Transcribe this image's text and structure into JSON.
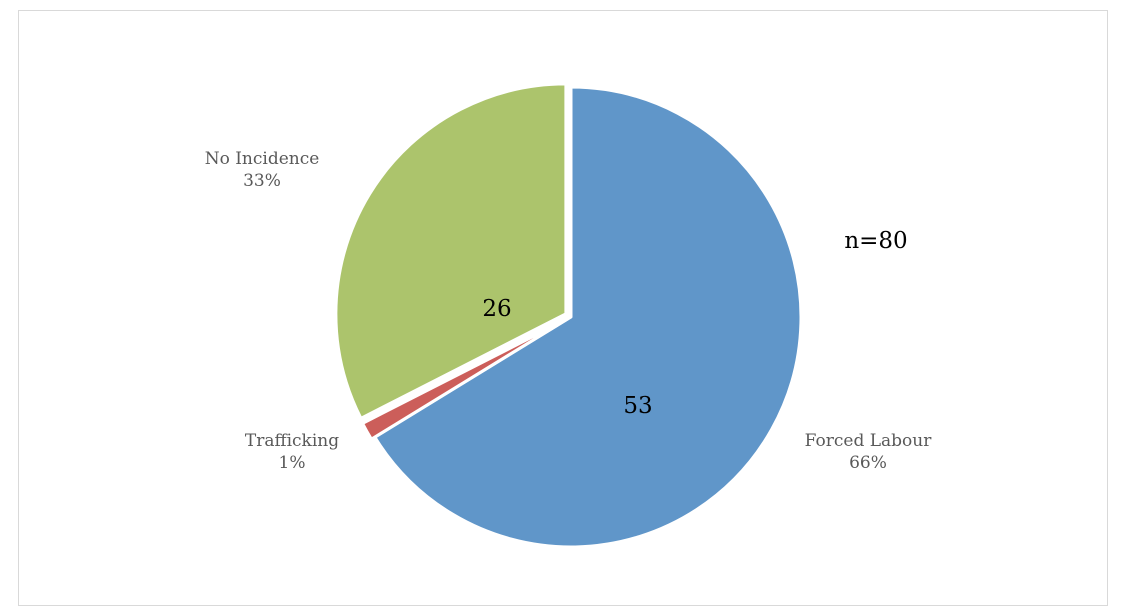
{
  "chart_data": {
    "type": "pie",
    "title": "",
    "annotation": "n=80",
    "slices": [
      {
        "name": "Forced Labour",
        "count": 53,
        "percent_label": "66%",
        "color": "#6096C9"
      },
      {
        "name": "Trafficking",
        "count": 1,
        "percent_label": "1%",
        "color": "#CC5E5A"
      },
      {
        "name": "No Incidence",
        "count": 26,
        "percent_label": "33%",
        "color": "#ACC46C"
      }
    ]
  }
}
